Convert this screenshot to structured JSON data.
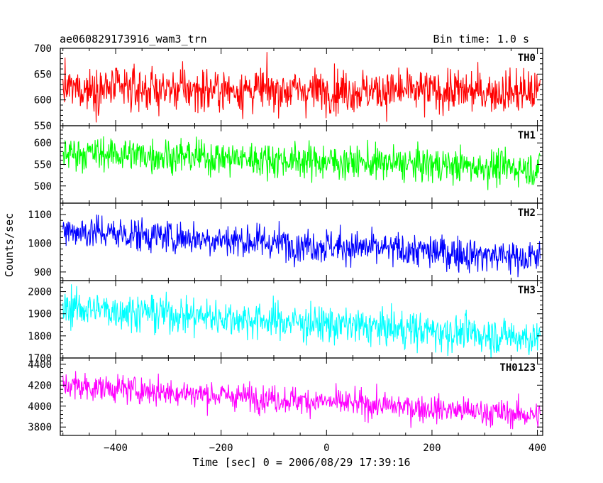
{
  "chart_data": {
    "type": "line",
    "title": "ae060829173916_wam3_trn",
    "subtitle": "Bin time: 1.0 s",
    "xlabel": "Time [sec] 0 = 2006/08/29 17:39:16",
    "ylabel": "Counts/sec",
    "xlim": [
      -505,
      410
    ],
    "xticks": [
      -400,
      -200,
      0,
      200,
      400
    ],
    "x_start": -500,
    "x_end": 405,
    "bin": 1.0,
    "panels": [
      {
        "name": "TH0",
        "color": "#ff0000",
        "ylim": [
          550,
          700
        ],
        "yticks": [
          550,
          600,
          650,
          700
        ],
        "start_mean": 622,
        "end_mean": 615,
        "spread": 21
      },
      {
        "name": "TH1",
        "color": "#00ff00",
        "ylim": [
          460,
          640
        ],
        "yticks": [
          500,
          550,
          600
        ],
        "start_mean": 578,
        "end_mean": 540,
        "spread": 20
      },
      {
        "name": "TH2",
        "color": "#0000ff",
        "ylim": [
          870,
          1140
        ],
        "yticks": [
          900,
          1000,
          1100
        ],
        "start_mean": 1045,
        "end_mean": 948,
        "spread": 30
      },
      {
        "name": "TH3",
        "color": "#00ffff",
        "ylim": [
          1700,
          2050
        ],
        "yticks": [
          1700,
          1800,
          1900,
          2000
        ],
        "start_mean": 1930,
        "end_mean": 1790,
        "spread": 42
      },
      {
        "name": "TH0123",
        "color": "#ff00ff",
        "ylim": [
          3720,
          4460
        ],
        "yticks": [
          3800,
          4000,
          4200,
          4400
        ],
        "start_mean": 4200,
        "end_mean": 3910,
        "spread": 65
      }
    ]
  }
}
